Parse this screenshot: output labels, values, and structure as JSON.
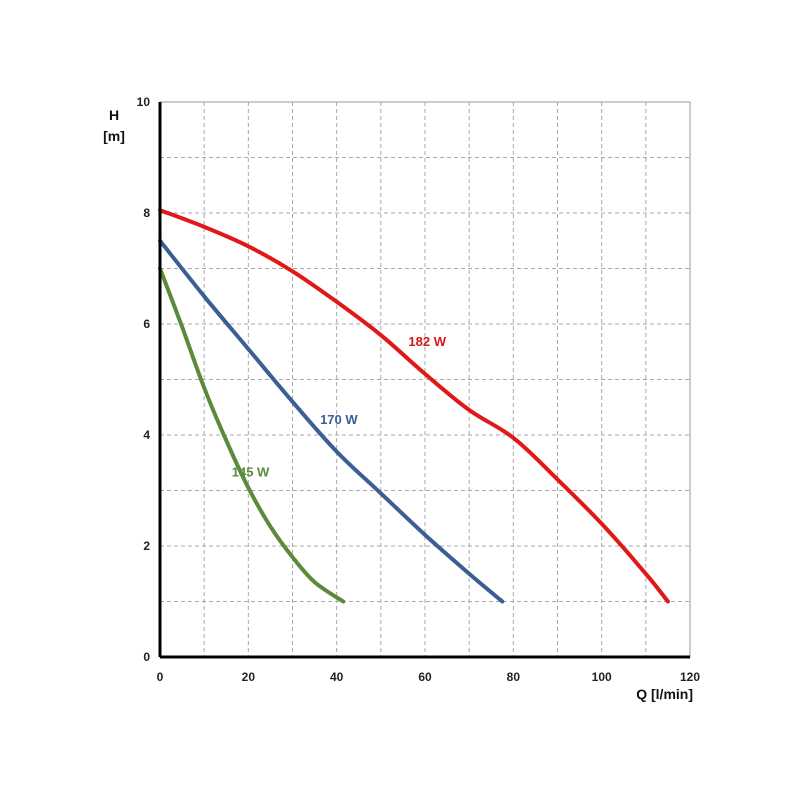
{
  "chart_data": {
    "type": "line",
    "title": "",
    "xlabel": "Q [l/min]",
    "ylabel_line1": "H",
    "ylabel_line2": "[m]",
    "xlim": [
      0,
      120
    ],
    "ylim": [
      0,
      10
    ],
    "x_ticks": [
      "0",
      "20",
      "40",
      "60",
      "80",
      "100",
      "120"
    ],
    "y_ticks": [
      "0",
      "2",
      "4",
      "6",
      "8",
      "10"
    ],
    "grid": true,
    "series": [
      {
        "name": "182 W",
        "color": "#e01818",
        "x": [
          0,
          10,
          20,
          30,
          40,
          50,
          60,
          70,
          80,
          90,
          100,
          110,
          115
        ],
        "y": [
          8.05,
          7.75,
          7.4,
          6.95,
          6.4,
          5.8,
          5.1,
          4.45,
          3.95,
          3.2,
          2.4,
          1.5,
          1.0
        ]
      },
      {
        "name": "170 W",
        "color": "#3a5f94",
        "x": [
          0,
          10,
          20,
          30,
          40,
          50,
          60,
          70,
          77.5
        ],
        "y": [
          7.5,
          6.5,
          5.55,
          4.6,
          3.7,
          2.95,
          2.2,
          1.5,
          1.0
        ]
      },
      {
        "name": "145 W",
        "color": "#5a8a3a",
        "x": [
          0,
          5,
          10,
          15,
          20,
          25,
          30,
          35,
          41.5
        ],
        "y": [
          7.0,
          5.95,
          4.85,
          3.9,
          3.05,
          2.35,
          1.8,
          1.35,
          1.0
        ]
      }
    ],
    "labels": [
      {
        "text": "182 W",
        "x": 60.5,
        "y": 5.6,
        "color": "#d31818"
      },
      {
        "text": "170 W",
        "x": 40.5,
        "y": 4.2,
        "color": "#3a5f94"
      },
      {
        "text": "145 W",
        "x": 20.5,
        "y": 3.25,
        "color": "#5a8a3a"
      }
    ]
  }
}
